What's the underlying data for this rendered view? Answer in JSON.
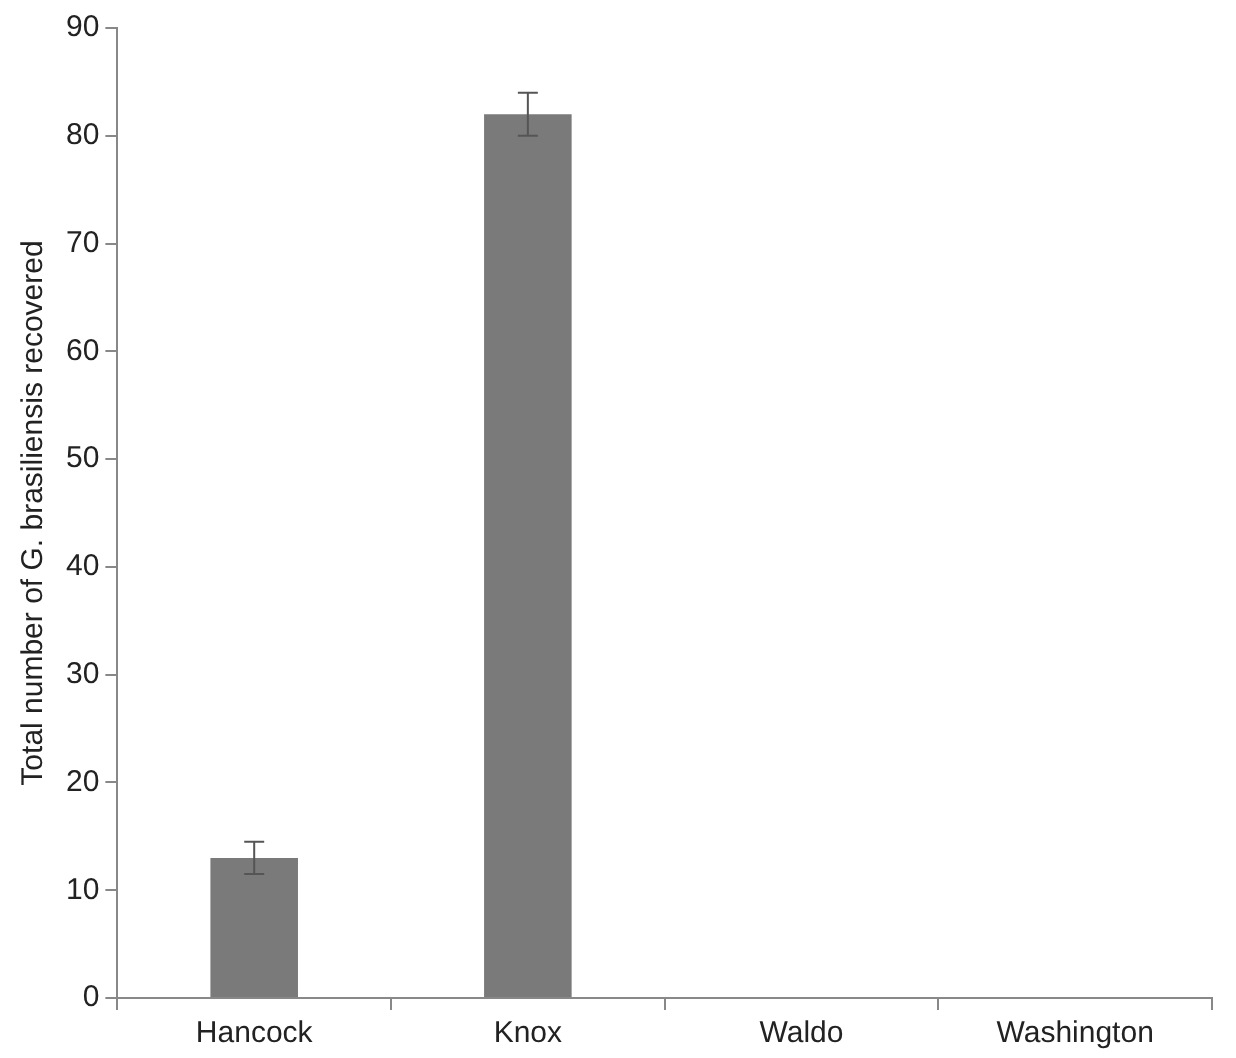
{
  "chart_data": {
    "type": "bar",
    "ylabel": "Total number of G. brasiliensis recovered",
    "categories": [
      "Hancock",
      "Knox",
      "Waldo",
      "Washington"
    ],
    "values": [
      13,
      82,
      0,
      0
    ],
    "errors": [
      1.5,
      2,
      null,
      null
    ],
    "color": "#7a7a7a",
    "ylim": [
      0,
      90
    ],
    "yticks": [
      0,
      10,
      20,
      30,
      40,
      50,
      60,
      70,
      80,
      90
    ],
    "grid": false
  }
}
